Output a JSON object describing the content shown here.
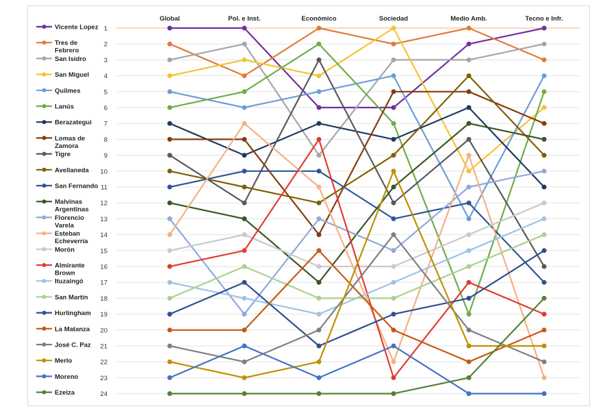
{
  "chart_data": {
    "type": "line",
    "title": "",
    "xlabel": "",
    "ylabel": "",
    "categories": [
      "Global",
      "Pol. e Inst.",
      "Económico",
      "Sociedad",
      "Medio Amb.",
      "Tecno e Infr."
    ],
    "ylim": [
      1,
      24
    ],
    "y_reversed": true,
    "yticks": [
      1,
      2,
      3,
      4,
      5,
      6,
      7,
      8,
      9,
      10,
      11,
      12,
      13,
      14,
      15,
      16,
      17,
      18,
      19,
      20,
      21,
      22,
      23,
      24
    ],
    "grid": true,
    "legend_position": "left",
    "series": [
      {
        "name": "Vicente Lopez",
        "color": "#7030a0",
        "values": [
          1,
          1,
          6,
          6,
          2,
          1
        ]
      },
      {
        "name": "Tres de Febrero",
        "color": "#e07b39",
        "values": [
          2,
          4,
          1,
          2,
          1,
          3
        ]
      },
      {
        "name": "San Isidro",
        "color": "#a6a6a6",
        "values": [
          3,
          2,
          9,
          3,
          3,
          2
        ]
      },
      {
        "name": "San Miguel",
        "color": "#f4c430",
        "values": [
          4,
          3,
          4,
          1,
          10,
          6
        ]
      },
      {
        "name": "Quilmes",
        "color": "#6a9fd6",
        "values": [
          5,
          6,
          5,
          4,
          13,
          4
        ]
      },
      {
        "name": "Lanús",
        "color": "#70ad47",
        "values": [
          6,
          5,
          2,
          7,
          19,
          5
        ]
      },
      {
        "name": "Berazategui",
        "color": "#1f3864",
        "values": [
          7,
          9,
          7,
          8,
          6,
          11
        ]
      },
      {
        "name": "Lomas de Zamora",
        "color": "#843c0c",
        "values": [
          8,
          8,
          14,
          5,
          5,
          7
        ]
      },
      {
        "name": "Tigre",
        "color": "#595959",
        "values": [
          9,
          12,
          3,
          12,
          8,
          16
        ]
      },
      {
        "name": "Avellaneda",
        "color": "#7f6000",
        "values": [
          10,
          11,
          12,
          9,
          4,
          9
        ]
      },
      {
        "name": "San Fernando",
        "color": "#2e5597",
        "values": [
          11,
          10,
          10,
          13,
          12,
          17
        ]
      },
      {
        "name": "Malvinas Argentinas",
        "color": "#375623",
        "values": [
          12,
          13,
          17,
          11,
          7,
          8
        ]
      },
      {
        "name": "Florencio Varela",
        "color": "#8ea9db",
        "values": [
          13,
          19,
          13,
          15,
          11,
          10
        ]
      },
      {
        "name": "Esteban Echeverría",
        "color": "#f4b183",
        "values": [
          14,
          7,
          11,
          22,
          9,
          23
        ]
      },
      {
        "name": "Morón",
        "color": "#c9c9c9",
        "values": [
          15,
          14,
          16,
          16,
          14,
          12
        ]
      },
      {
        "name": "Almirante Brown",
        "color": "#e03c31",
        "values": [
          16,
          15,
          8,
          23,
          17,
          19
        ]
      },
      {
        "name": "Ituzaingó",
        "color": "#9dc3e6",
        "values": [
          17,
          18,
          19,
          17,
          15,
          13
        ]
      },
      {
        "name": "San Martín",
        "color": "#a9d18e",
        "values": [
          18,
          16,
          18,
          18,
          16,
          14
        ]
      },
      {
        "name": "Hurlingham",
        "color": "#2f4f8f",
        "values": [
          19,
          17,
          21,
          19,
          18,
          15
        ]
      },
      {
        "name": "La Matanza",
        "color": "#c55a11",
        "values": [
          20,
          20,
          15,
          20,
          22,
          20
        ]
      },
      {
        "name": "José C. Paz",
        "color": "#7f7f7f",
        "values": [
          21,
          22,
          20,
          14,
          20,
          22
        ]
      },
      {
        "name": "Merlo",
        "color": "#bf9000",
        "values": [
          22,
          23,
          22,
          10,
          21,
          21
        ]
      },
      {
        "name": "Moreno",
        "color": "#4472c4",
        "values": [
          23,
          21,
          23,
          21,
          24,
          24
        ]
      },
      {
        "name": "Ezeiza",
        "color": "#548235",
        "values": [
          24,
          24,
          24,
          24,
          23,
          18
        ]
      }
    ]
  }
}
